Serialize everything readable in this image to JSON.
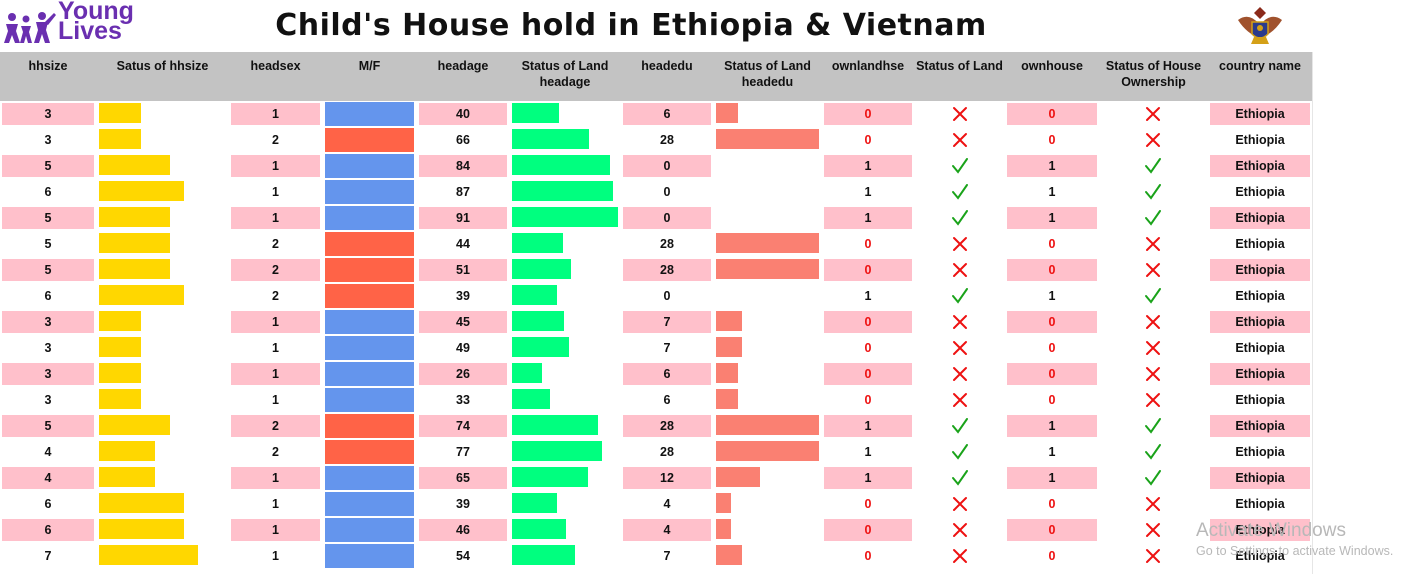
{
  "header": {
    "logo_text_1": "Young",
    "logo_text_2": "Lives",
    "title": "Child's House hold  in Ethiopia & Vietnam"
  },
  "columns": [
    {
      "key": "hhsize",
      "label": "hhsize"
    },
    {
      "key": "hhsize_bar",
      "label": "Satus of hhsize"
    },
    {
      "key": "headsex",
      "label": "headsex"
    },
    {
      "key": "mf",
      "label": "M/F"
    },
    {
      "key": "headage",
      "label": "headage"
    },
    {
      "key": "headage_bar",
      "label": "Status of Land headage"
    },
    {
      "key": "headedu",
      "label": "headedu"
    },
    {
      "key": "headedu_bar",
      "label": "Status of Land headedu"
    },
    {
      "key": "ownlandhse",
      "label": "ownlandhse"
    },
    {
      "key": "land_status",
      "label": "Status of Land"
    },
    {
      "key": "ownhouse",
      "label": "ownhouse"
    },
    {
      "key": "house_status",
      "label": "Status of House Ownership"
    },
    {
      "key": "country",
      "label": "country name"
    }
  ],
  "colors": {
    "hhsize_bar": "#ffd700",
    "male": "#6495ed",
    "female": "#ff6347",
    "headage_bar": "#00ff7f",
    "headedu_bar": "#fa8072",
    "check": "#1aa31a",
    "cross": "#ee1111",
    "pink_band": "#ffc0cb",
    "header_bg": "#c3c3c3"
  },
  "chart_data": {
    "type": "table",
    "title": "Child's House hold  in Ethiopia & Vietnam",
    "columns": [
      "hhsize",
      "Satus of hhsize",
      "headsex",
      "M/F",
      "headage",
      "Status of Land headage",
      "headedu",
      "Status of Land headedu",
      "ownlandhse",
      "Status of Land",
      "ownhouse",
      "Status of House Ownership",
      "country name"
    ],
    "rows": [
      {
        "hhsize": "3",
        "headsex": "1",
        "headage": "40",
        "headedu": "6",
        "ownlandhse": "0",
        "ownhouse": "0",
        "country": "Ethiopia"
      },
      {
        "hhsize": "3",
        "headsex": "2",
        "headage": "66",
        "headedu": "28",
        "ownlandhse": "0",
        "ownhouse": "0",
        "country": "Ethiopia"
      },
      {
        "hhsize": "5",
        "headsex": "1",
        "headage": "84",
        "headedu": "0",
        "ownlandhse": "1",
        "ownhouse": "1",
        "country": "Ethiopia"
      },
      {
        "hhsize": "6",
        "headsex": "1",
        "headage": "87",
        "headedu": "0",
        "ownlandhse": "1",
        "ownhouse": "1",
        "country": "Ethiopia"
      },
      {
        "hhsize": "5",
        "headsex": "1",
        "headage": "91",
        "headedu": "0",
        "ownlandhse": "1",
        "ownhouse": "1",
        "country": "Ethiopia"
      },
      {
        "hhsize": "5",
        "headsex": "2",
        "headage": "44",
        "headedu": "28",
        "ownlandhse": "0",
        "ownhouse": "0",
        "country": "Ethiopia"
      },
      {
        "hhsize": "5",
        "headsex": "2",
        "headage": "51",
        "headedu": "28",
        "ownlandhse": "0",
        "ownhouse": "0",
        "country": "Ethiopia"
      },
      {
        "hhsize": "6",
        "headsex": "2",
        "headage": "39",
        "headedu": "0",
        "ownlandhse": "1",
        "ownhouse": "1",
        "country": "Ethiopia"
      },
      {
        "hhsize": "3",
        "headsex": "1",
        "headage": "45",
        "headedu": "7",
        "ownlandhse": "0",
        "ownhouse": "0",
        "country": "Ethiopia"
      },
      {
        "hhsize": "3",
        "headsex": "1",
        "headage": "49",
        "headedu": "7",
        "ownlandhse": "0",
        "ownhouse": "0",
        "country": "Ethiopia"
      },
      {
        "hhsize": "3",
        "headsex": "1",
        "headage": "26",
        "headedu": "6",
        "ownlandhse": "0",
        "ownhouse": "0",
        "country": "Ethiopia"
      },
      {
        "hhsize": "3",
        "headsex": "1",
        "headage": "33",
        "headedu": "6",
        "ownlandhse": "0",
        "ownhouse": "0",
        "country": "Ethiopia"
      },
      {
        "hhsize": "5",
        "headsex": "2",
        "headage": "74",
        "headedu": "28",
        "ownlandhse": "1",
        "ownhouse": "1",
        "country": "Ethiopia"
      },
      {
        "hhsize": "4",
        "headsex": "2",
        "headage": "77",
        "headedu": "28",
        "ownlandhse": "1",
        "ownhouse": "1",
        "country": "Ethiopia"
      },
      {
        "hhsize": "4",
        "headsex": "1",
        "headage": "65",
        "headedu": "12",
        "ownlandhse": "1",
        "ownhouse": "1",
        "country": "Ethiopia"
      },
      {
        "hhsize": "6",
        "headsex": "1",
        "headage": "39",
        "headedu": "4",
        "ownlandhse": "0",
        "ownhouse": "0",
        "country": "Ethiopia"
      },
      {
        "hhsize": "6",
        "headsex": "1",
        "headage": "46",
        "headedu": "4",
        "ownlandhse": "0",
        "ownhouse": "0",
        "country": "Ethiopia"
      },
      {
        "hhsize": "7",
        "headsex": "1",
        "headage": "54",
        "headedu": "7",
        "ownlandhse": "0",
        "ownhouse": "0",
        "country": "Ethiopia"
      }
    ],
    "bar_scales": {
      "hhsize_max": 9,
      "headage_max": 91,
      "headedu_max": 28
    }
  },
  "watermark": {
    "line1": "Activate Windows",
    "line2": "Go to Settings to activate Windows."
  }
}
